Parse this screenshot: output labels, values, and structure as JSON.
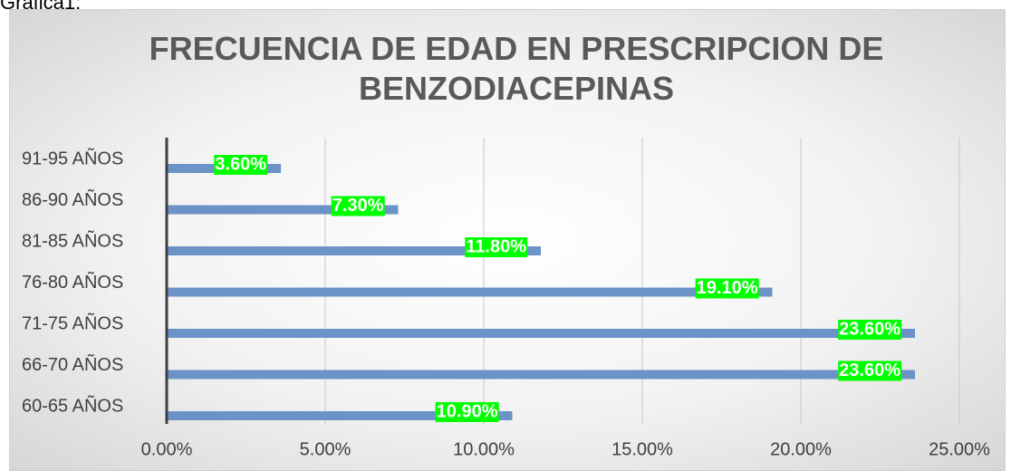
{
  "caption": "Grafica1:",
  "chart_data": {
    "type": "barh",
    "title": "FRECUENCIA DE EDAD EN PRESCRIPCION DE BENZODIACEPINAS",
    "categories": [
      "91-95 AÑOS",
      "86-90 AÑOS",
      "81-85 AÑOS",
      "76-80 AÑOS",
      "71-75 AÑOS",
      "66-70 AÑOS",
      "60-65 AÑOS"
    ],
    "values": [
      3.6,
      7.3,
      11.8,
      19.1,
      23.6,
      23.6,
      10.9
    ],
    "value_labels": [
      "3.60%",
      "7.30%",
      "11.80%",
      "19.10%",
      "23.60%",
      "23.60%",
      "10.90%"
    ],
    "color": "#6b93c8",
    "label_color": "#00ff00",
    "xlim": [
      0,
      25
    ],
    "xticks": [
      {
        "value": 0,
        "label": "0.00%"
      },
      {
        "value": 5,
        "label": "5.00%"
      },
      {
        "value": 10,
        "label": "10.00%"
      },
      {
        "value": 15,
        "label": "15.00%"
      },
      {
        "value": 20,
        "label": "20.00%"
      },
      {
        "value": 25,
        "label": "25.00%"
      }
    ],
    "grid": true
  }
}
